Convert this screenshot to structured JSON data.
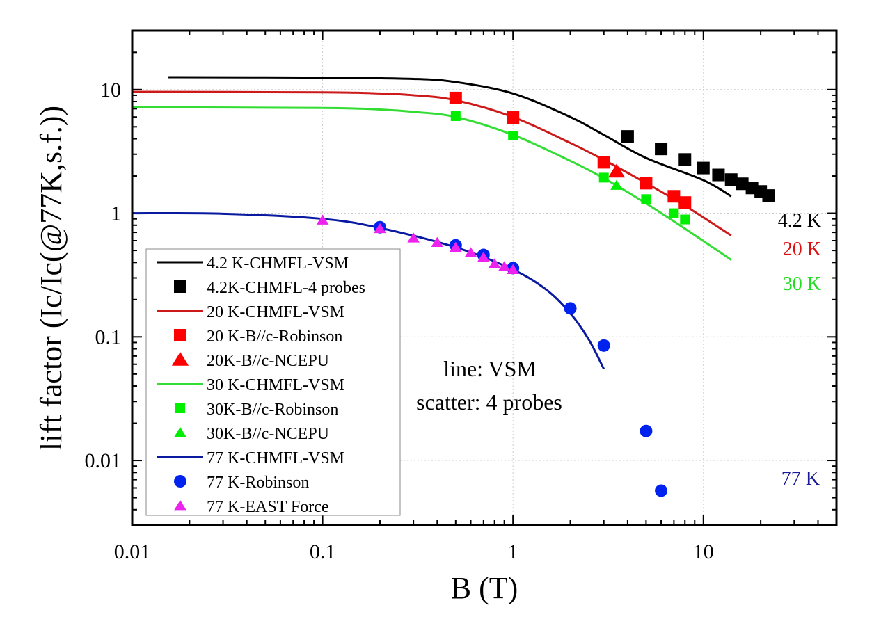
{
  "chart_data": {
    "type": "scatter",
    "xlabel": "B (T)",
    "ylabel": "lift factor (Ic/Ic(@77K,s.f.))",
    "xscale": "log",
    "yscale": "log",
    "xlim": [
      0.01,
      50
    ],
    "ylim": [
      0.003,
      30
    ],
    "xticks": [
      0.01,
      0.1,
      1,
      10
    ],
    "xtick_labels": [
      "0.01",
      "0.1",
      "1",
      "10"
    ],
    "yticks": [
      0.01,
      0.1,
      1,
      10
    ],
    "ytick_labels": [
      "0.01",
      "0.1",
      "1",
      "10"
    ],
    "grid": true,
    "legend_position": "bottom-left",
    "annotations": {
      "method_line": "line: VSM",
      "method_scatter": "scatter: 4 probes",
      "temp_42": "4.2 K",
      "temp_20": "20 K",
      "temp_30": "30 K",
      "temp_77": "77 K"
    },
    "annotation_colors": {
      "temp_42": "#000000",
      "temp_20": "#dd1111",
      "temp_30": "#22dd22",
      "temp_77": "#1a1a99"
    },
    "series": [
      {
        "name": "4.2 K-CHMFL-VSM",
        "kind": "line",
        "color": "#000000",
        "x": [
          0.0155,
          0.1,
          0.3,
          0.5,
          1,
          2,
          3,
          5,
          10,
          14
        ],
        "y": [
          12.6,
          12.5,
          12.2,
          11.5,
          9.3,
          6.0,
          4.3,
          2.8,
          1.85,
          1.37
        ]
      },
      {
        "name": "4.2K-CHMFL-4 probes",
        "kind": "marker",
        "marker": "square",
        "size": "large",
        "color": "#000000",
        "x": [
          4,
          6,
          8,
          10,
          12,
          14,
          16,
          18,
          20,
          22
        ],
        "y": [
          4.18,
          3.31,
          2.72,
          2.32,
          2.04,
          1.87,
          1.73,
          1.6,
          1.5,
          1.39
        ]
      },
      {
        "name": "20 K-CHMFL-VSM",
        "kind": "line",
        "color": "#cc1a1a",
        "x": [
          0.01,
          0.1,
          0.2,
          0.3,
          0.5,
          1,
          2,
          3,
          5,
          8,
          14
        ],
        "y": [
          9.6,
          9.5,
          9.3,
          9.0,
          8.2,
          6.0,
          3.7,
          2.7,
          1.75,
          1.15,
          0.66
        ]
      },
      {
        "name": "20 K-B//c-Robinson",
        "kind": "marker",
        "marker": "square",
        "size": "large",
        "color": "#ff0000",
        "x": [
          0.5,
          1,
          3,
          5,
          7,
          8
        ],
        "y": [
          8.55,
          5.94,
          2.58,
          1.75,
          1.37,
          1.22
        ]
      },
      {
        "name": "20K-B//c-NCEPU",
        "kind": "marker",
        "marker": "triangle",
        "size": "large",
        "color": "#ff0000",
        "x": [
          3.5
        ],
        "y": [
          2.18
        ]
      },
      {
        "name": "30 K-CHMFL-VSM",
        "kind": "line",
        "color": "#33dd33",
        "x": [
          0.01,
          0.1,
          0.2,
          0.3,
          0.5,
          1,
          2,
          3,
          5,
          8,
          14
        ],
        "y": [
          7.2,
          7.1,
          6.9,
          6.6,
          6.0,
          4.3,
          2.65,
          1.92,
          1.2,
          0.75,
          0.42
        ]
      },
      {
        "name": "30K-B//c-Robinson",
        "kind": "marker",
        "marker": "square",
        "size": "small",
        "color": "#00ee00",
        "x": [
          0.5,
          1,
          3,
          5,
          7,
          8
        ],
        "y": [
          6.1,
          4.24,
          1.94,
          1.3,
          1.0,
          0.89
        ]
      },
      {
        "name": "30K-B//c-NCEPU",
        "kind": "marker",
        "marker": "triangle",
        "size": "small",
        "color": "#00ee00",
        "x": [
          3.5
        ],
        "y": [
          1.68
        ]
      },
      {
        "name": "77 K-CHMFL-VSM",
        "kind": "line",
        "color": "#0a1aa0",
        "x": [
          0.01,
          0.03,
          0.1,
          0.2,
          0.5,
          1,
          1.5,
          2,
          2.5,
          3
        ],
        "y": [
          1.0,
          0.99,
          0.9,
          0.76,
          0.53,
          0.35,
          0.24,
          0.155,
          0.095,
          0.055
        ]
      },
      {
        "name": "77 K-Robinson",
        "kind": "marker",
        "marker": "circle",
        "size": "large",
        "color": "#0022ee",
        "x": [
          0.2,
          0.5,
          0.7,
          1,
          2,
          3,
          5,
          6
        ],
        "y": [
          0.77,
          0.55,
          0.46,
          0.36,
          0.17,
          0.085,
          0.0173,
          0.0057
        ]
      },
      {
        "name": "77 K-EAST Force",
        "kind": "marker",
        "marker": "triangle",
        "size": "small",
        "color": "#ee22ee",
        "x": [
          0.1,
          0.2,
          0.3,
          0.4,
          0.5,
          0.6,
          0.7,
          0.8,
          0.9,
          1.0
        ],
        "y": [
          0.88,
          0.75,
          0.63,
          0.58,
          0.53,
          0.48,
          0.44,
          0.39,
          0.37,
          0.35
        ]
      }
    ]
  }
}
